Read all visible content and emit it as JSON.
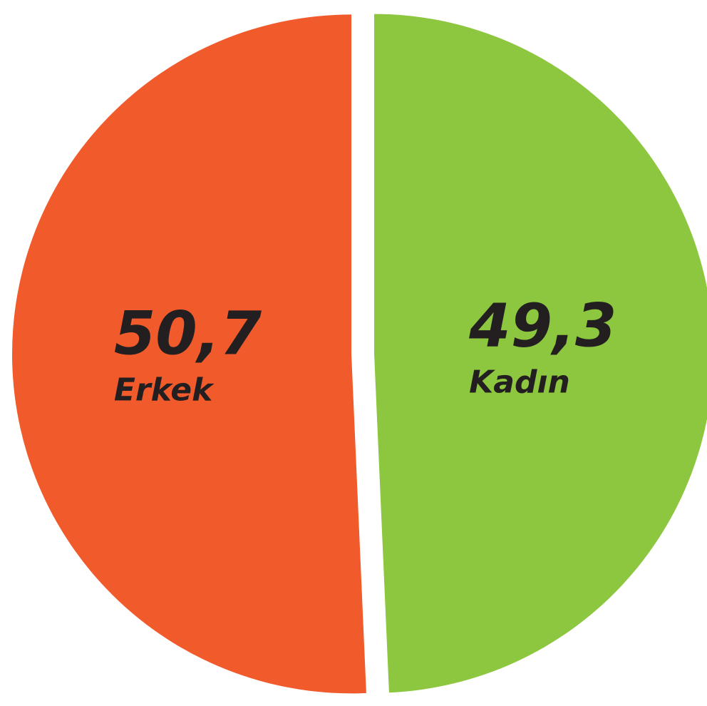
{
  "chart_data": {
    "type": "pie",
    "categories": [
      "Erkek",
      "Kadın"
    ],
    "values": [
      50.7,
      49.3
    ],
    "value_labels": [
      "50,7",
      "49,3"
    ],
    "colors": [
      "#f15a2b",
      "#8dc63f"
    ]
  }
}
